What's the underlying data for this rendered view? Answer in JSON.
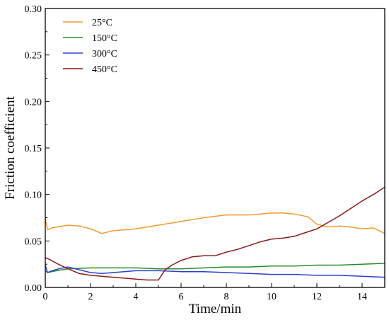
{
  "chart_data": {
    "type": "line",
    "title": "",
    "xlabel": "Time/min",
    "ylabel": "Friction coefficient",
    "xlim": [
      0,
      15
    ],
    "ylim": [
      0,
      0.3
    ],
    "xticks": [
      0,
      2,
      4,
      6,
      8,
      10,
      12,
      14
    ],
    "xtick_labels": [
      "0",
      "2",
      "4",
      "6",
      "8",
      "10",
      "12",
      "14"
    ],
    "yticks": [
      0,
      0.05,
      0.1,
      0.15,
      0.2,
      0.25,
      0.3
    ],
    "ytick_labels": [
      "0.00",
      "0.05",
      "0.10",
      "0.15",
      "0.20",
      "0.25",
      "0.30"
    ],
    "grid": false,
    "legend_position": "top-left",
    "series": [
      {
        "name": "25°C",
        "color": "#F39A2D",
        "x": [
          0,
          0.1,
          0.3,
          1,
          1.5,
          2,
          2.5,
          3,
          4,
          5,
          6,
          7,
          8,
          9,
          10,
          10.5,
          11,
          11.6,
          12,
          12.5,
          13,
          13.5,
          14,
          14.5,
          15
        ],
        "y": [
          0.074,
          0.062,
          0.064,
          0.067,
          0.066,
          0.063,
          0.058,
          0.061,
          0.063,
          0.067,
          0.071,
          0.075,
          0.078,
          0.078,
          0.08,
          0.08,
          0.079,
          0.076,
          0.068,
          0.065,
          0.066,
          0.065,
          0.063,
          0.064,
          0.058
        ]
      },
      {
        "name": "150°C",
        "color": "#2A8A2A",
        "x": [
          0,
          0.1,
          0.3,
          0.5,
          1,
          2,
          3,
          4,
          5,
          6,
          7,
          8,
          9,
          10,
          11,
          12,
          13,
          14,
          15
        ],
        "y": [
          0.018,
          0.016,
          0.017,
          0.018,
          0.02,
          0.021,
          0.021,
          0.021,
          0.02,
          0.02,
          0.021,
          0.022,
          0.022,
          0.023,
          0.023,
          0.024,
          0.024,
          0.025,
          0.026
        ]
      },
      {
        "name": "300°C",
        "color": "#2B3FD6",
        "x": [
          0,
          0.1,
          0.3,
          0.6,
          1,
          1.5,
          2,
          2.5,
          3,
          4,
          5,
          6,
          7,
          8,
          9,
          10,
          11,
          12,
          13,
          14,
          15
        ],
        "y": [
          0.024,
          0.016,
          0.018,
          0.02,
          0.022,
          0.019,
          0.016,
          0.015,
          0.016,
          0.018,
          0.018,
          0.017,
          0.017,
          0.016,
          0.015,
          0.014,
          0.014,
          0.013,
          0.013,
          0.012,
          0.011
        ]
      },
      {
        "name": "450°C",
        "color": "#8B1A1A",
        "x": [
          0,
          0.2,
          0.5,
          1,
          1.5,
          2,
          2.5,
          3,
          3.5,
          4,
          4.5,
          5,
          5.3,
          5.6,
          6,
          6.5,
          7,
          7.5,
          8,
          8.5,
          9,
          9.5,
          10,
          10.5,
          11,
          11.5,
          12,
          12.5,
          13,
          13.5,
          14,
          14.5,
          15
        ],
        "y": [
          0.032,
          0.03,
          0.026,
          0.02,
          0.015,
          0.013,
          0.012,
          0.011,
          0.01,
          0.009,
          0.008,
          0.008,
          0.019,
          0.024,
          0.029,
          0.033,
          0.034,
          0.034,
          0.038,
          0.041,
          0.045,
          0.049,
          0.052,
          0.053,
          0.055,
          0.059,
          0.063,
          0.07,
          0.077,
          0.085,
          0.093,
          0.1,
          0.108
        ]
      }
    ]
  }
}
